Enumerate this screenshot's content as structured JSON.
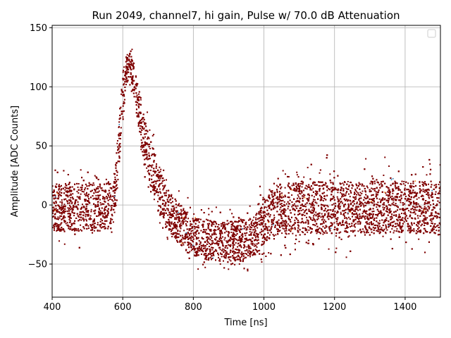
{
  "chart_data": {
    "type": "scatter",
    "title": "Run 2049, channel7, hi gain, Pulse w/ 70.0 dB Attenuation",
    "xlabel": "Time [ns]",
    "ylabel": "Amplitude [ADC Counts]",
    "xlim": [
      400,
      1500
    ],
    "ylim": [
      -78,
      152
    ],
    "xticks": [
      400,
      600,
      800,
      1000,
      1200,
      1400
    ],
    "yticks": [
      -50,
      0,
      50,
      100,
      150
    ],
    "grid": true,
    "legend": "top-right (empty)",
    "colors": {
      "primary": "#7f0000",
      "sparse": [
        "#1f77b4",
        "#ff7f0e"
      ]
    },
    "series": [
      {
        "x": [
          400,
          450,
          500,
          550,
          570,
          580,
          590,
          600,
          610,
          620,
          630,
          640,
          650,
          660,
          680,
          700,
          720,
          750,
          780,
          800,
          850,
          900,
          950,
          980,
          1000,
          1020,
          1050,
          1080,
          1100,
          1150,
          1200,
          1300,
          1400,
          1500
        ],
        "values": [
          -2,
          -2,
          -2,
          -2,
          0,
          15,
          55,
          95,
          115,
          118,
          108,
          92,
          75,
          55,
          35,
          15,
          0,
          -12,
          -22,
          -27,
          -30,
          -31,
          -30,
          -25,
          -15,
          -8,
          -3,
          -3,
          -2,
          -2,
          -2,
          -2,
          -2,
          -2
        ],
        "spread": [
          20,
          20,
          20,
          20,
          20,
          20,
          20,
          18,
          12,
          12,
          14,
          16,
          18,
          20,
          20,
          20,
          18,
          17,
          17,
          17,
          17,
          17,
          17,
          17,
          18,
          20,
          22,
          22,
          22,
          22,
          22,
          22,
          22,
          22
        ]
      }
    ]
  }
}
